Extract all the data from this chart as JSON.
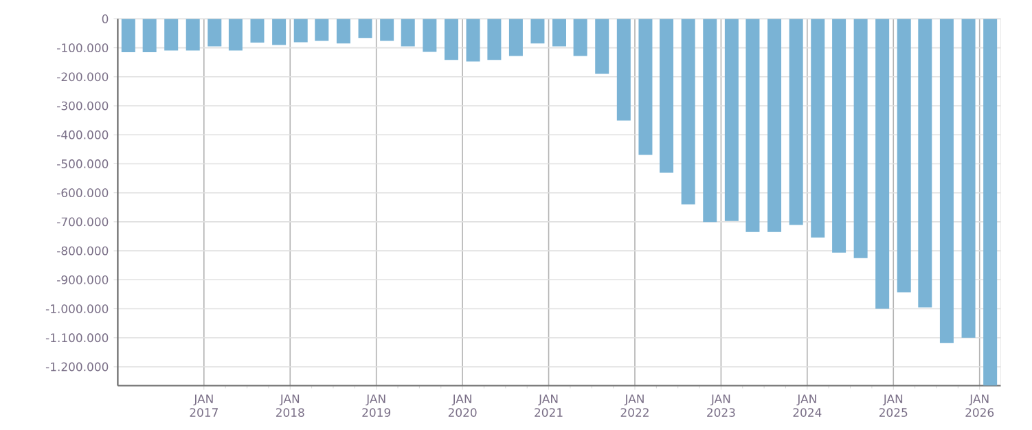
{
  "chart_data": {
    "type": "bar",
    "color": "#7ab3d5",
    "grid": true,
    "x": [
      "2016-02-15",
      "2016-05-15",
      "2016-08-15",
      "2016-11-15",
      "2017-02-15",
      "2017-05-15",
      "2017-08-15",
      "2017-11-15",
      "2018-02-15",
      "2018-05-15",
      "2018-08-15",
      "2018-11-15",
      "2019-02-15",
      "2019-05-15",
      "2019-08-15",
      "2019-11-15",
      "2020-02-15",
      "2020-05-15",
      "2020-08-15",
      "2020-11-15",
      "2021-02-15",
      "2021-05-15",
      "2021-08-15",
      "2021-11-15",
      "2022-02-15",
      "2022-05-15",
      "2022-08-15",
      "2022-11-15",
      "2023-02-15",
      "2023-05-15",
      "2023-08-15",
      "2023-11-15",
      "2024-02-15",
      "2024-05-15",
      "2024-08-15",
      "2024-11-15",
      "2025-02-15",
      "2025-05-15",
      "2025-08-15",
      "2025-11-15",
      "2026-02-15"
    ],
    "values": [
      -115000,
      -115000,
      -109000,
      -109000,
      -95000,
      -109000,
      -82000,
      -90000,
      -81000,
      -76000,
      -85000,
      -66000,
      -76000,
      -95000,
      -114000,
      -142000,
      -147000,
      -142000,
      -128000,
      -85000,
      -95000,
      -128000,
      -190000,
      -351000,
      -469000,
      -531000,
      -640000,
      -701000,
      -697000,
      -735000,
      -735000,
      -711000,
      -754000,
      -806000,
      -825000,
      -1000000,
      -943000,
      -995000,
      -1118000,
      -1100000,
      -1265000
    ],
    "xlim": [
      "2016-01-01",
      "2026-04-01"
    ],
    "ylim": [
      -1265000,
      0
    ],
    "xticks": [
      {
        "value": "2017-01-01",
        "label": "JAN 2017"
      },
      {
        "value": "2018-01-01",
        "label": "JAN 2018"
      },
      {
        "value": "2019-01-01",
        "label": "JAN 2019"
      },
      {
        "value": "2020-01-01",
        "label": "JAN 2020"
      },
      {
        "value": "2021-01-01",
        "label": "JAN 2021"
      },
      {
        "value": "2022-01-01",
        "label": "JAN 2022"
      },
      {
        "value": "2023-01-01",
        "label": "JAN 2023"
      },
      {
        "value": "2024-01-01",
        "label": "JAN 2024"
      },
      {
        "value": "2025-01-01",
        "label": "JAN 2025"
      },
      {
        "value": "2026-01-01",
        "label": "JAN 2026"
      }
    ],
    "yticks": [
      0,
      {
        "value": -100000,
        "label": "-100.000"
      },
      {
        "value": -200000,
        "label": "-200.000"
      },
      {
        "value": -300000,
        "label": "-300.000"
      },
      {
        "value": -400000,
        "label": "-400.000"
      },
      {
        "value": -500000,
        "label": "-500.000"
      },
      {
        "value": -600000,
        "label": "-600.000"
      },
      {
        "value": -700000,
        "label": "-700.000"
      },
      {
        "value": -800000,
        "label": "-800.000"
      },
      {
        "value": -900000,
        "label": "-900.000"
      },
      {
        "value": -1000000,
        "label": "-1.000.000"
      },
      {
        "value": -1100000,
        "label": "-1.100.000"
      },
      {
        "value": -1200000,
        "label": "-1.200.000"
      }
    ]
  }
}
